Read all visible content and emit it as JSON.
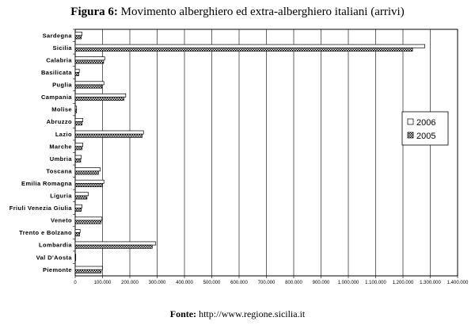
{
  "title_label": "Figura 6:",
  "title_text": "Movimento alberghiero ed extra-alberghiero italiani (arrivi)",
  "source_label": "Fonte:",
  "source_text": "http://www.regione.sicilia.it",
  "colors": {
    "series_2006": "#ffffff",
    "series_2005_pattern": "#000000",
    "border": "#000000"
  },
  "chart_data": {
    "type": "bar",
    "orientation": "horizontal",
    "title": "Movimento alberghiero ed extra-alberghiero italiani (arrivi)",
    "categories": [
      "Sardegna",
      "Sicilia",
      "Calabria",
      "Basilicata",
      "Puglia",
      "Campania",
      "Molise",
      "Abruzzo",
      "Lazio",
      "Marche",
      "Umbria",
      "Toscana",
      "Emilia Romagna",
      "Liguria",
      "Friuli Venezia Giulia",
      "Veneto",
      "Trento e Bolzano",
      "Lombardia",
      "Val D'Aosta",
      "Piemonte"
    ],
    "series": [
      {
        "name": "2006",
        "values": [
          25000,
          1280000,
          108000,
          15000,
          105000,
          185000,
          5000,
          28000,
          250000,
          28000,
          22000,
          92000,
          105000,
          48000,
          25000,
          98000,
          18000,
          295000,
          2000,
          100000
        ]
      },
      {
        "name": "2005",
        "values": [
          22000,
          1235000,
          104000,
          13000,
          98000,
          178000,
          5000,
          25000,
          245000,
          25000,
          20000,
          85000,
          100000,
          43000,
          22000,
          95000,
          16000,
          282000,
          2000,
          95000
        ]
      }
    ],
    "xlim": [
      0,
      1400000
    ],
    "xticks": [
      "0",
      "100.000",
      "200.000",
      "300.000",
      "400.000",
      "500.000",
      "600.000",
      "700.000",
      "800.000",
      "900.000",
      "1.000.000",
      "1.100.000",
      "1.200.000",
      "1.300.000",
      "1.400.000"
    ],
    "grid": "vertical",
    "legend_position": "right",
    "xlabel": "",
    "ylabel": ""
  }
}
